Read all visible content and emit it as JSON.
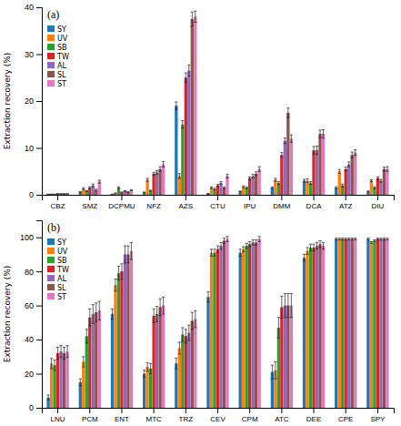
{
  "chart_data": [
    {
      "type": "bar",
      "title": "(a)",
      "y_label": "Extraction recovery (%)",
      "categories": [
        "CBZ",
        "SMZ",
        "DCPMU",
        "NFZ",
        "AZS",
        "CTU",
        "IPU",
        "DMM",
        "DCA",
        "ATZ",
        "DIU"
      ],
      "series": [
        {
          "name": "SY",
          "values": [
            0.1,
            0.6,
            0.1,
            0.5,
            19.0,
            0.2,
            0.7,
            1.5,
            3.0,
            1.5,
            0.7
          ],
          "errors": [
            0.05,
            0.1,
            0.05,
            0.1,
            0.8,
            0.1,
            0.1,
            0.2,
            0.3,
            0.2,
            0.1
          ]
        },
        {
          "name": "UV",
          "values": [
            0.1,
            1.3,
            0.3,
            3.2,
            4.0,
            1.5,
            1.7,
            3.2,
            3.0,
            5.0,
            3.0
          ],
          "errors": [
            0.05,
            0.2,
            0.1,
            0.3,
            0.5,
            0.2,
            0.2,
            0.3,
            0.4,
            0.4,
            0.2
          ]
        },
        {
          "name": "SB",
          "values": [
            0.1,
            0.8,
            1.5,
            0.9,
            15.0,
            1.2,
            1.5,
            2.5,
            2.5,
            2.0,
            1.5
          ],
          "errors": [
            0.05,
            0.1,
            0.2,
            0.1,
            0.8,
            0.2,
            0.2,
            0.3,
            0.3,
            0.3,
            0.2
          ]
        },
        {
          "name": "TW",
          "values": [
            0.2,
            1.5,
            0.5,
            4.5,
            25.0,
            2.0,
            3.5,
            8.5,
            9.5,
            5.5,
            3.5
          ],
          "errors": [
            0.05,
            0.2,
            0.1,
            0.3,
            1.0,
            0.2,
            0.3,
            0.5,
            0.8,
            0.4,
            0.3
          ]
        },
        {
          "name": "AL",
          "values": [
            0.2,
            2.0,
            0.8,
            4.8,
            26.5,
            2.5,
            4.0,
            11.5,
            9.5,
            6.5,
            3.0
          ],
          "errors": [
            0.05,
            0.3,
            0.1,
            0.4,
            1.2,
            0.3,
            0.4,
            0.6,
            0.9,
            0.5,
            0.3
          ]
        },
        {
          "name": "SL",
          "values": [
            0.2,
            1.0,
            0.6,
            5.5,
            37.5,
            1.5,
            4.5,
            17.5,
            13.0,
            8.5,
            5.5
          ],
          "errors": [
            0.05,
            0.2,
            0.1,
            0.5,
            1.5,
            0.2,
            0.4,
            1.0,
            0.8,
            0.6,
            0.4
          ]
        },
        {
          "name": "ST",
          "values": [
            0.2,
            2.8,
            1.0,
            6.5,
            38.0,
            4.0,
            5.5,
            12.0,
            13.0,
            9.0,
            5.5
          ],
          "errors": [
            0.05,
            0.3,
            0.1,
            0.6,
            1.2,
            0.4,
            0.5,
            0.8,
            0.9,
            0.6,
            0.5
          ]
        }
      ],
      "ylim": [
        0,
        40
      ],
      "yticks": [
        0,
        10,
        20,
        30,
        40
      ],
      "grid": false,
      "legend": "upper left"
    },
    {
      "type": "bar",
      "title": "(b)",
      "y_label": "Extraction recovery (%)",
      "categories": [
        "LNU",
        "PCM",
        "ENT",
        "MTC",
        "TRZ",
        "CEV",
        "CPM",
        "ATC",
        "DEE",
        "CPE",
        "SPY"
      ],
      "series": [
        {
          "name": "SY",
          "values": [
            6.0,
            15.0,
            55.0,
            20.0,
            26.0,
            65.0,
            91.0,
            21.0,
            88.0,
            99.0,
            99.0
          ],
          "errors": [
            1.5,
            2.0,
            3.0,
            2.0,
            3.0,
            3.0,
            2.0,
            4.0,
            2.0,
            0.5,
            0.5
          ]
        },
        {
          "name": "UV",
          "values": [
            26.0,
            27.0,
            72.0,
            24.0,
            35.0,
            91.0,
            93.0,
            22.0,
            92.0,
            99.0,
            97.0
          ],
          "errors": [
            3.0,
            3.0,
            3.5,
            2.5,
            3.5,
            2.0,
            1.5,
            5.0,
            2.0,
            0.5,
            0.5
          ]
        },
        {
          "name": "SB",
          "values": [
            25.0,
            42.0,
            79.0,
            23.0,
            43.0,
            91.0,
            95.0,
            47.0,
            94.0,
            99.0,
            98.0
          ],
          "errors": [
            3.0,
            4.0,
            4.0,
            3.0,
            4.0,
            2.0,
            1.5,
            6.0,
            2.0,
            0.5,
            0.5
          ]
        },
        {
          "name": "TW",
          "values": [
            32.0,
            53.0,
            80.0,
            54.0,
            42.0,
            93.0,
            96.0,
            59.0,
            94.0,
            99.0,
            99.0
          ],
          "errors": [
            3.5,
            5.0,
            4.5,
            4.0,
            4.0,
            2.0,
            1.5,
            6.5,
            2.0,
            0.5,
            0.5
          ]
        },
        {
          "name": "AL",
          "values": [
            33.0,
            55.0,
            90.0,
            55.0,
            44.0,
            95.0,
            97.0,
            60.0,
            95.0,
            99.0,
            99.0
          ],
          "errors": [
            3.5,
            5.5,
            5.0,
            4.5,
            4.5,
            2.0,
            1.5,
            7.0,
            2.0,
            0.5,
            0.5
          ]
        },
        {
          "name": "SL",
          "values": [
            32.0,
            56.0,
            90.0,
            59.0,
            51.0,
            98.0,
            97.0,
            60.0,
            96.0,
            99.0,
            99.0
          ],
          "errors": [
            3.5,
            5.5,
            5.0,
            5.0,
            5.0,
            1.5,
            1.5,
            7.0,
            2.0,
            0.5,
            0.5
          ]
        },
        {
          "name": "ST",
          "values": [
            33.0,
            57.0,
            92.0,
            60.0,
            52.0,
            99.0,
            99.0,
            60.0,
            95.0,
            99.0,
            99.0
          ],
          "errors": [
            3.5,
            5.5,
            5.0,
            5.0,
            5.0,
            1.5,
            1.5,
            7.0,
            2.0,
            0.5,
            0.5
          ]
        }
      ],
      "ylim": [
        0,
        110
      ],
      "yticks": [
        0,
        20,
        40,
        60,
        80,
        100
      ],
      "grid": false,
      "legend": "upper left"
    }
  ]
}
